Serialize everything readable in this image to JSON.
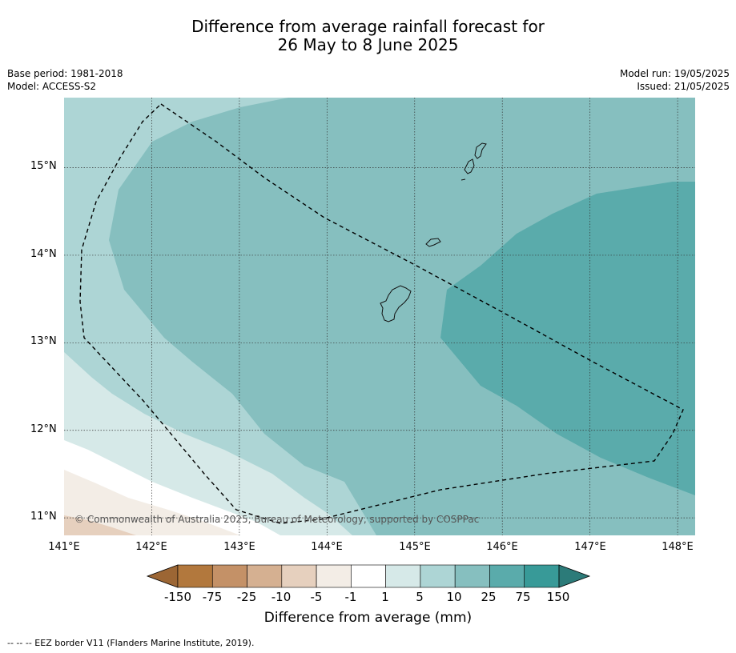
{
  "title_line1": "Difference from average rainfall forecast for",
  "title_line2": "26 May to 8 June 2025",
  "meta": {
    "base_period": "Base period: 1981-2018",
    "model": "Model: ACCESS-S2",
    "model_run": "Model run: 19/05/2025",
    "issued": "Issued: 21/05/2025"
  },
  "map": {
    "lat_labels": [
      "15°N",
      "14°N",
      "13°N",
      "12°N",
      "11°N"
    ],
    "lon_labels": [
      "141°E",
      "142°E",
      "143°E",
      "144°E",
      "145°E",
      "146°E",
      "147°E",
      "148°E"
    ],
    "lat_range": [
      10.8,
      15.8
    ],
    "lon_range": [
      141.0,
      148.2
    ],
    "copyright": "© Commonwealth of Australia 2025, Bureau of Meteorology, supported by COSPPac",
    "gridlines": true
  },
  "colorbar": {
    "labels": [
      "-150",
      "-75",
      "-25",
      "-10",
      "-5",
      "-1",
      "1",
      "5",
      "10",
      "25",
      "75",
      "150"
    ],
    "colors": [
      "#9c6634",
      "#b2783d",
      "#c49167",
      "#d5b091",
      "#e6d0be",
      "#f3ede6",
      "#ffffff",
      "#d6e9e8",
      "#add5d5",
      "#86bfbf",
      "#5aabab",
      "#389a98",
      "#2c7b79"
    ],
    "title": "Difference from average (mm)"
  },
  "footnote": "-- -- -- EEZ border V11 (Flanders Marine Institute, 2019)."
}
